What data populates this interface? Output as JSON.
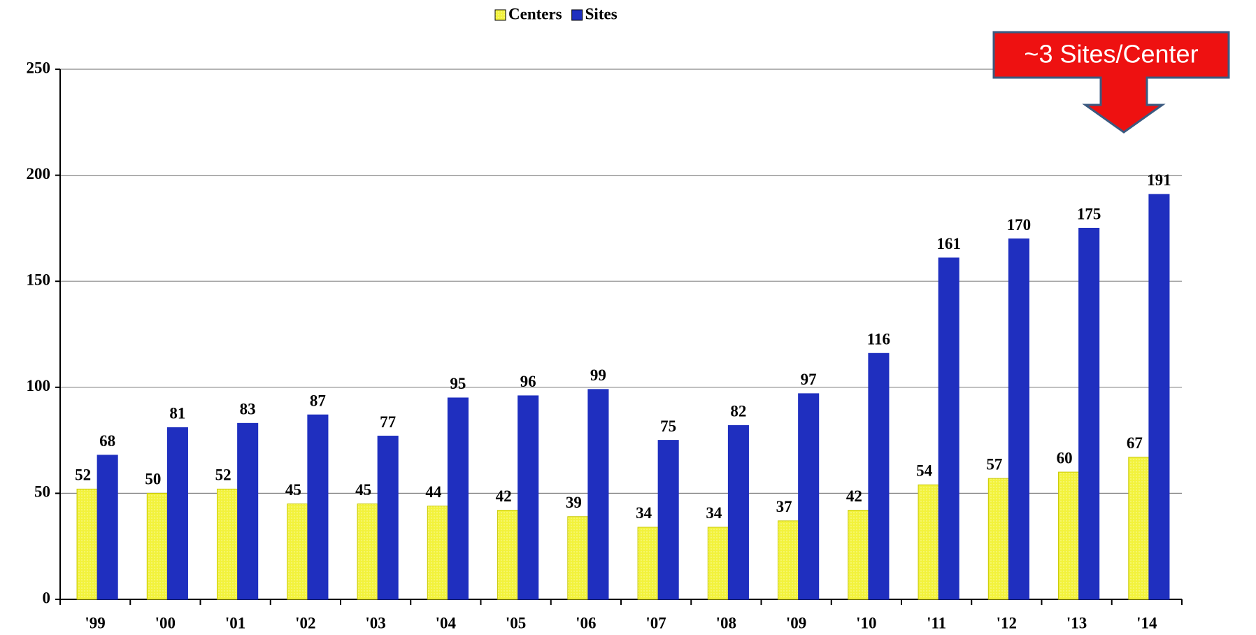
{
  "chart_data": {
    "type": "bar",
    "categories": [
      "'99",
      "'00",
      "'01",
      "'02",
      "'03",
      "'04",
      "'05",
      "'06",
      "'07",
      "'08",
      "'09",
      "'10",
      "'11",
      "'12",
      "'13",
      "'14"
    ],
    "series": [
      {
        "name": "Centers",
        "color": "#f2f23c",
        "values": [
          52,
          50,
          52,
          45,
          45,
          44,
          42,
          39,
          34,
          34,
          37,
          42,
          54,
          57,
          60,
          67
        ]
      },
      {
        "name": "Sites",
        "color": "#1f2fbf",
        "values": [
          68,
          81,
          83,
          87,
          77,
          95,
          96,
          99,
          75,
          82,
          97,
          116,
          161,
          170,
          175,
          191
        ]
      }
    ],
    "ylim": [
      0,
      250
    ],
    "yticks": [
      0,
      50,
      100,
      150,
      200,
      250
    ],
    "grid": true,
    "legend": "top",
    "annotation": "~3 Sites/Center"
  }
}
